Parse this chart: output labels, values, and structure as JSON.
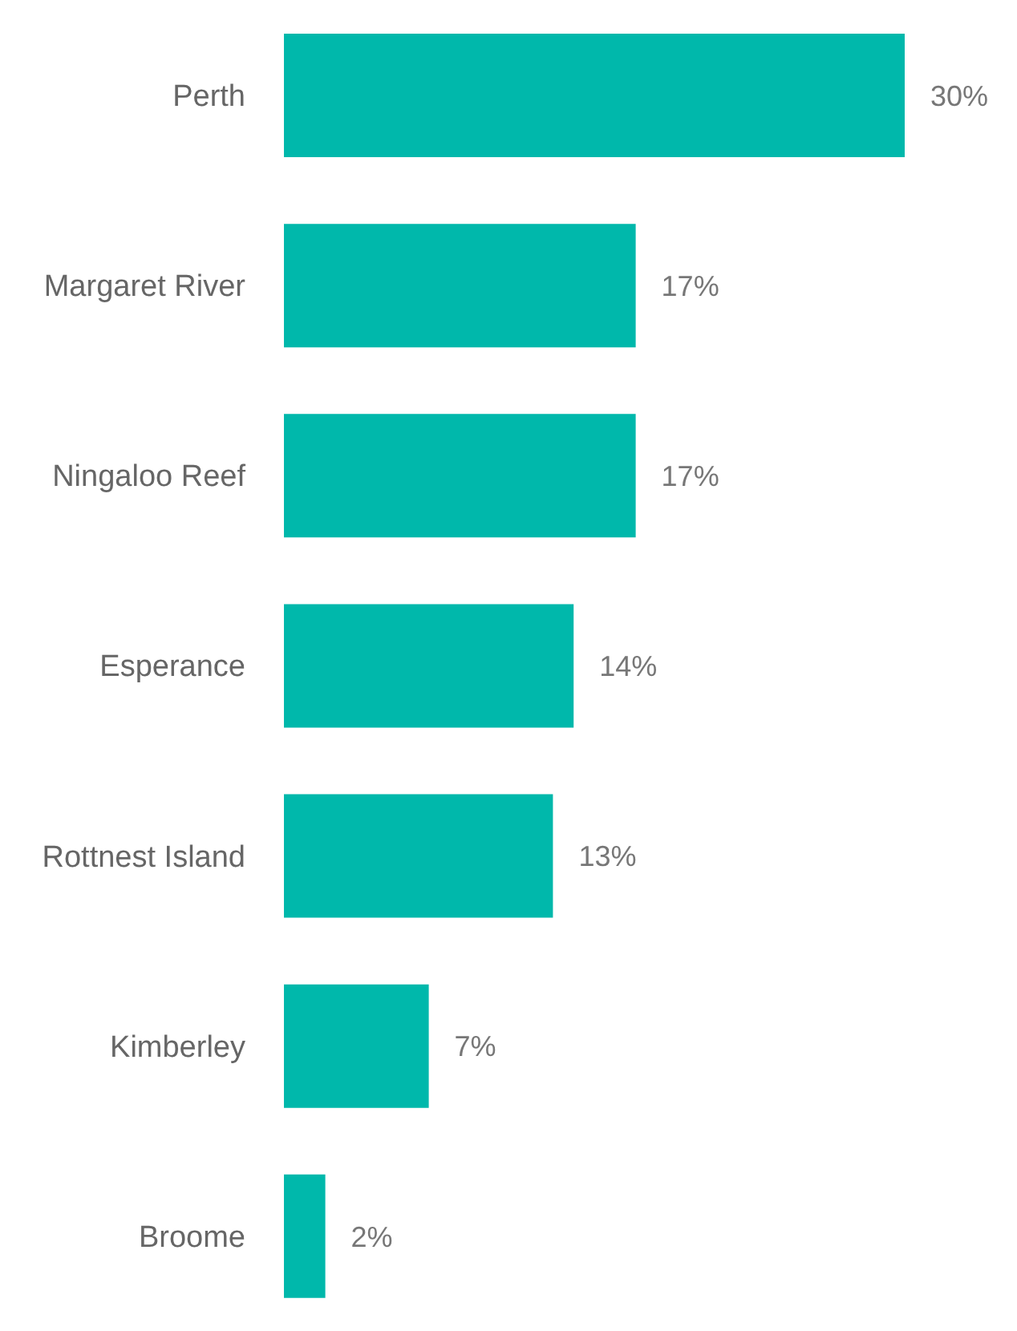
{
  "chart_data": {
    "type": "bar",
    "orientation": "horizontal",
    "categories": [
      "Perth",
      "Margaret River",
      "Ningaloo Reef",
      "Esperance",
      "Rottnest Island",
      "Kimberley",
      "Broome"
    ],
    "values": [
      30,
      17,
      17,
      14,
      13,
      7,
      2
    ],
    "value_labels": [
      "30%",
      "17%",
      "17%",
      "14%",
      "13%",
      "7%",
      "2%"
    ],
    "color": "#00b8ab",
    "grid": false,
    "legend": false,
    "tick_labels": "y"
  }
}
